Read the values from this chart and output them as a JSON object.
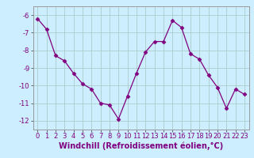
{
  "x": [
    0,
    1,
    2,
    3,
    4,
    5,
    6,
    7,
    8,
    9,
    10,
    11,
    12,
    13,
    14,
    15,
    16,
    17,
    18,
    19,
    20,
    21,
    22,
    23
  ],
  "y": [
    -6.2,
    -6.8,
    -8.3,
    -8.6,
    -9.3,
    -9.9,
    -10.2,
    -11.0,
    -11.1,
    -11.9,
    -10.6,
    -9.3,
    -8.1,
    -7.5,
    -7.5,
    -6.3,
    -6.7,
    -8.2,
    -8.5,
    -9.4,
    -10.1,
    -11.3,
    -10.2,
    -10.5
  ],
  "line_color": "#800080",
  "marker": "D",
  "marker_size": 2.5,
  "xlabel": "Windchill (Refroidissement éolien,°C)",
  "ylim": [
    -12.5,
    -5.5
  ],
  "xlim": [
    -0.5,
    23.5
  ],
  "yticks": [
    -12,
    -11,
    -10,
    -9,
    -8,
    -7,
    -6
  ],
  "xticks": [
    0,
    1,
    2,
    3,
    4,
    5,
    6,
    7,
    8,
    9,
    10,
    11,
    12,
    13,
    14,
    15,
    16,
    17,
    18,
    19,
    20,
    21,
    22,
    23
  ],
  "bg_color": "#cceeff",
  "grid_color": "#aacccc",
  "tick_fontsize": 6.0,
  "xlabel_fontsize": 7.0
}
